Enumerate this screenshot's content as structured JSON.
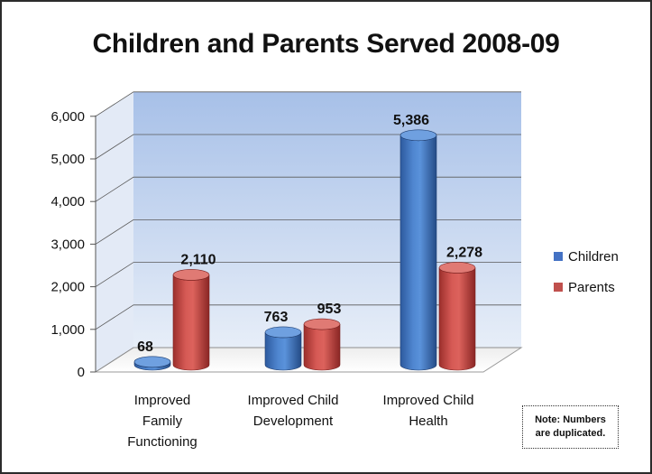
{
  "chart_data": {
    "type": "bar",
    "title": "Children and Parents Served 2008-09",
    "categories": [
      [
        "Improved",
        "Family",
        "Functioning"
      ],
      [
        "Improved Child",
        "Development"
      ],
      [
        "Improved Child",
        "Health"
      ]
    ],
    "series": [
      {
        "name": "Children",
        "values": [
          68,
          763,
          5386
        ],
        "labels": [
          "68",
          "763",
          "5,386"
        ],
        "color": "#4472C4"
      },
      {
        "name": "Parents",
        "values": [
          2110,
          953,
          2278
        ],
        "labels": [
          "2,110",
          "953",
          "2,278"
        ],
        "color": "#C0504D"
      }
    ],
    "yticks": [
      0,
      1000,
      2000,
      3000,
      4000,
      5000,
      6000
    ],
    "ytick_labels": [
      "0",
      "1,000",
      "2,000",
      "3,000",
      "4,000",
      "5,000",
      "6,000"
    ],
    "ylim": [
      0,
      6000
    ],
    "grid": true,
    "legend_position": "right",
    "style": "3d-cylinder",
    "wall_color_top": "#A7C0E8",
    "wall_color_bottom": "#E7EEF8"
  },
  "note": [
    "Note: Numbers",
    "are duplicated."
  ]
}
